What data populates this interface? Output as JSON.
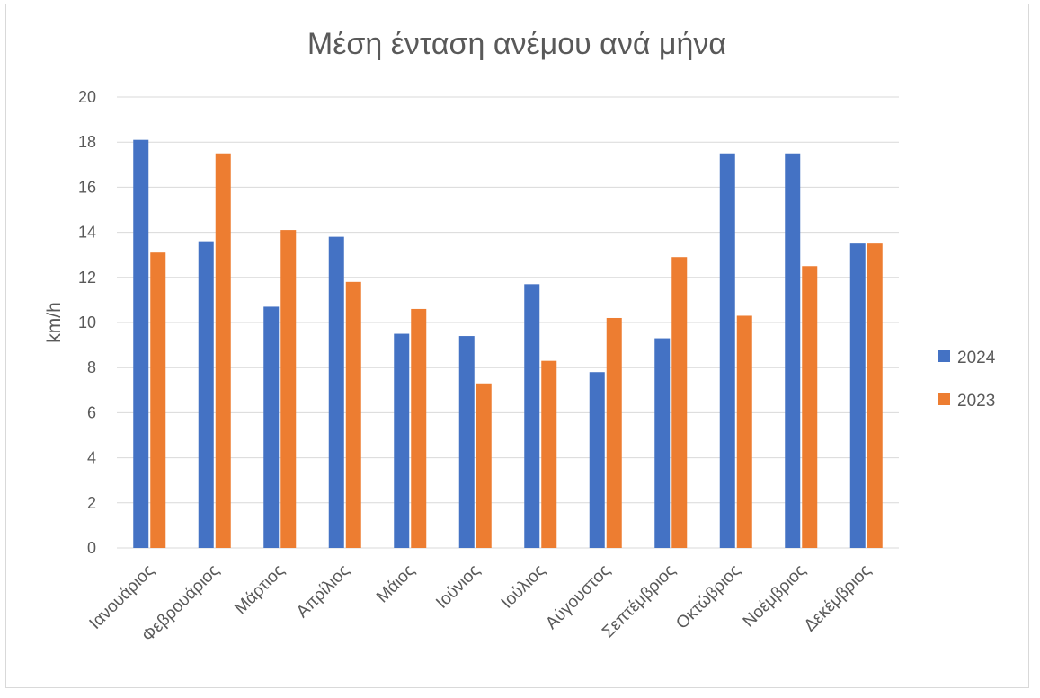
{
  "chart_data": {
    "type": "bar",
    "title": "Μέση ένταση ανέμου ανά μήνα",
    "xlabel": "",
    "ylabel": "km/h",
    "ylim": [
      0,
      20
    ],
    "yticks": [
      "0",
      "2",
      "4",
      "6",
      "8",
      "10",
      "12",
      "14",
      "16",
      "18",
      "20"
    ],
    "grid": true,
    "legend_position": "right",
    "categories": [
      "Ιανουάριος",
      "Φεβρουάριος",
      "Μάρτιος",
      "Απρίλιος",
      "Μάιος",
      "Ιούνιος",
      "Ιούλιος",
      "Αύγουστος",
      "Σεπτέμβριος",
      "Οκτώβριος",
      "Νοέμβριος",
      "Δεκέμβριος"
    ],
    "series": [
      {
        "name": "2024",
        "color": "#4472C4",
        "values": [
          18.1,
          13.6,
          10.7,
          13.8,
          9.5,
          9.4,
          11.7,
          7.8,
          9.3,
          17.5,
          17.5,
          13.5
        ]
      },
      {
        "name": "2023",
        "color": "#ED7D31",
        "values": [
          13.1,
          17.5,
          14.1,
          11.8,
          10.6,
          7.3,
          8.3,
          10.2,
          12.9,
          10.3,
          12.5,
          13.5
        ]
      }
    ]
  }
}
